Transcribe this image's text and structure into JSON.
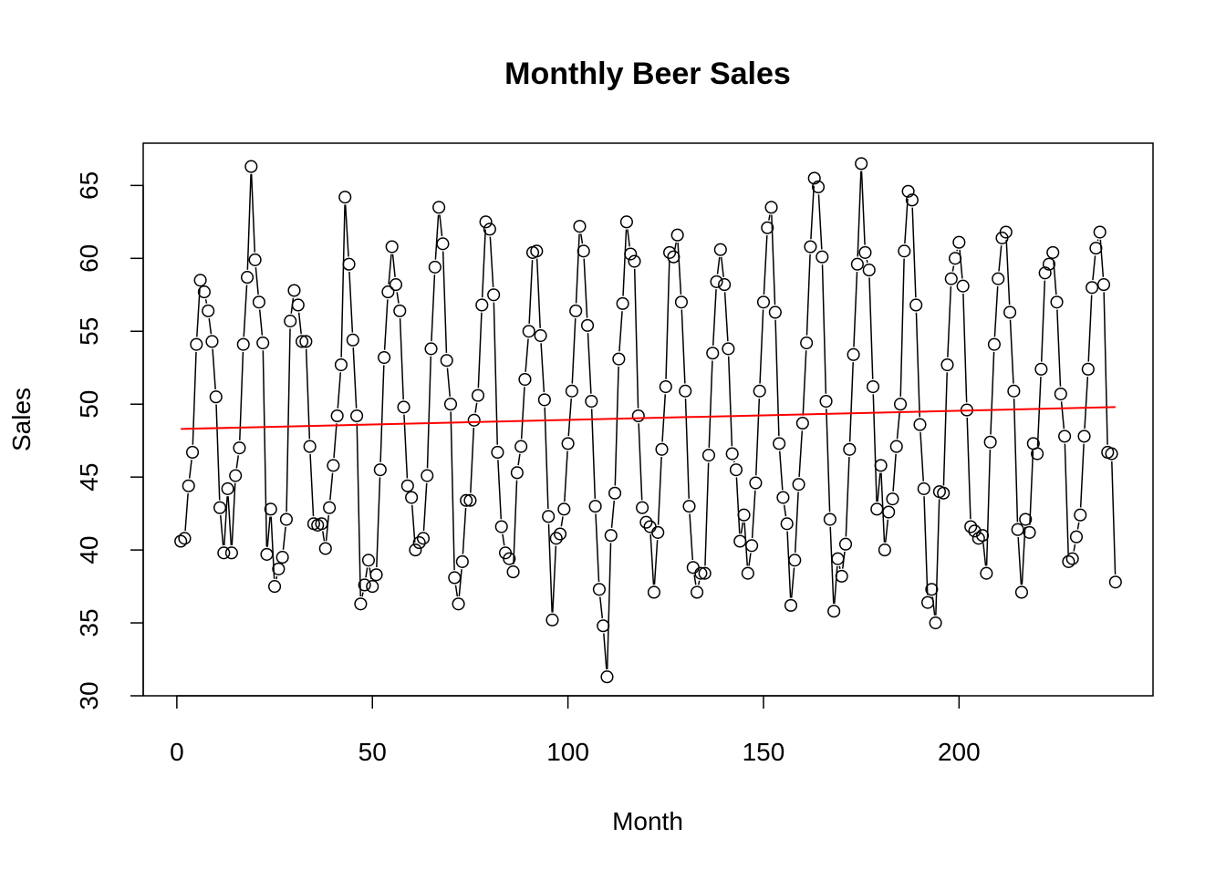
{
  "chart_data": {
    "type": "line",
    "title": "Monthly Beer Sales",
    "xlabel": "Month",
    "ylabel": "Sales",
    "xlim": [
      -8.6,
      249.6
    ],
    "ylim": [
      30.0,
      67.9
    ],
    "xticks": [
      0,
      50,
      100,
      150,
      200
    ],
    "yticks": [
      30,
      35,
      40,
      45,
      50,
      55,
      60,
      65
    ],
    "grid": false,
    "legend": "none",
    "colors": {
      "series": "#000000",
      "trend": "#ff0000",
      "frame": "#000000"
    },
    "series": [
      {
        "style": "points-and-lines",
        "marker": "open-circle",
        "x": [
          1,
          2,
          3,
          4,
          5,
          6,
          7,
          8,
          9,
          10,
          11,
          12,
          13,
          14,
          15,
          16,
          17,
          18,
          19,
          20,
          21,
          22,
          23,
          24,
          25,
          26,
          27,
          28,
          29,
          30,
          31,
          32,
          33,
          34,
          35,
          36,
          37,
          38,
          39,
          40,
          41,
          42,
          43,
          44,
          45,
          46,
          47,
          48,
          49,
          50,
          51,
          52,
          53,
          54,
          55,
          56,
          57,
          58,
          59,
          60,
          61,
          62,
          63,
          64,
          65,
          66,
          67,
          68,
          69,
          70,
          71,
          72,
          73,
          74,
          75,
          76,
          77,
          78,
          79,
          80,
          81,
          82,
          83,
          84,
          85,
          86,
          87,
          88,
          89,
          90,
          91,
          92,
          93,
          94,
          95,
          96,
          97,
          98,
          99,
          100,
          101,
          102,
          103,
          104,
          105,
          106,
          107,
          108,
          109,
          110,
          111,
          112,
          113,
          114,
          115,
          116,
          117,
          118,
          119,
          120,
          121,
          122,
          123,
          124,
          125,
          126,
          127,
          128,
          129,
          130,
          131,
          132,
          133,
          134,
          135,
          136,
          137,
          138,
          139,
          140,
          141,
          142,
          143,
          144,
          145,
          146,
          147,
          148,
          149,
          150,
          151,
          152,
          153,
          154,
          155,
          156,
          157,
          158,
          159,
          160,
          161,
          162,
          163,
          164,
          165,
          166,
          167,
          168,
          169,
          170,
          171,
          172,
          173,
          174,
          175,
          176,
          177,
          178,
          179,
          180,
          181,
          182,
          183,
          184,
          185,
          186,
          187,
          188,
          189,
          190,
          191,
          192,
          193,
          194,
          195,
          196,
          197,
          198,
          199,
          200,
          201,
          202,
          203,
          204,
          205,
          206,
          207,
          208,
          209,
          210,
          211,
          212,
          213,
          214,
          215,
          216,
          217,
          218,
          219,
          220,
          221,
          222,
          223,
          224,
          225,
          226,
          227,
          228,
          229,
          230,
          231,
          232,
          233,
          234,
          235,
          236,
          237,
          238,
          239,
          240
        ],
        "values": [
          40.6,
          40.8,
          44.4,
          46.7,
          54.1,
          58.5,
          57.7,
          56.4,
          54.3,
          50.5,
          42.9,
          39.8,
          44.2,
          39.8,
          45.1,
          47.0,
          54.1,
          58.7,
          66.3,
          59.9,
          57.0,
          54.2,
          39.7,
          42.8,
          37.5,
          38.7,
          39.5,
          42.1,
          55.7,
          57.8,
          56.8,
          54.3,
          54.3,
          47.1,
          41.8,
          41.7,
          41.8,
          40.1,
          42.9,
          45.8,
          49.2,
          52.7,
          64.2,
          59.6,
          54.4,
          49.2,
          36.3,
          37.6,
          39.3,
          37.5,
          38.3,
          45.5,
          53.2,
          57.7,
          60.8,
          58.2,
          56.4,
          49.8,
          44.4,
          43.6,
          40.0,
          40.5,
          40.8,
          45.1,
          53.8,
          59.4,
          63.5,
          61.0,
          53.0,
          50.0,
          38.1,
          36.3,
          39.2,
          43.4,
          43.4,
          48.9,
          50.6,
          56.8,
          62.5,
          62.0,
          57.5,
          46.7,
          41.6,
          39.8,
          39.4,
          38.5,
          45.3,
          47.1,
          51.7,
          55.0,
          60.4,
          60.5,
          54.7,
          50.3,
          42.3,
          35.2,
          40.8,
          41.1,
          42.8,
          47.3,
          50.9,
          56.4,
          62.2,
          60.5,
          55.4,
          50.2,
          43.0,
          37.3,
          34.8,
          31.3,
          41.0,
          43.9,
          53.1,
          56.9,
          62.5,
          60.3,
          59.8,
          49.2,
          42.9,
          41.9,
          41.6,
          37.1,
          41.2,
          46.9,
          51.2,
          60.4,
          60.1,
          61.6,
          57.0,
          50.9,
          43.0,
          38.8,
          37.1,
          38.4,
          38.4,
          46.5,
          53.5,
          58.4,
          60.6,
          58.2,
          53.8,
          46.6,
          45.5,
          40.6,
          42.4,
          38.4,
          40.3,
          44.6,
          50.9,
          57.0,
          62.1,
          63.5,
          56.3,
          47.3,
          43.6,
          41.8,
          36.2,
          39.3,
          44.5,
          48.7,
          54.2,
          60.8,
          65.5,
          64.9,
          60.1,
          50.2,
          42.1,
          35.8,
          39.4,
          38.2,
          40.4,
          46.9,
          53.4,
          59.6,
          66.5,
          60.4,
          59.2,
          51.2,
          42.8,
          45.8,
          40.0,
          42.6,
          43.5,
          47.1,
          50.0,
          60.5,
          64.6,
          64.0,
          56.8,
          48.6,
          44.2,
          36.4,
          37.3,
          35.0,
          44.0,
          43.9,
          52.7,
          58.6,
          60.0,
          61.1,
          58.1,
          49.6,
          41.6,
          41.3,
          40.8,
          41.0,
          38.4,
          47.4,
          54.1,
          58.6,
          61.4,
          61.8,
          56.3,
          50.9,
          41.4,
          37.1,
          42.1,
          41.2,
          47.3,
          46.6,
          52.4,
          59.0,
          59.6,
          60.4,
          57.0,
          50.7,
          47.8,
          39.2,
          39.4,
          40.9,
          42.4,
          47.8,
          52.4,
          58.0,
          60.7,
          61.8,
          58.2,
          46.7,
          46.6,
          37.8
        ]
      },
      {
        "style": "trend-line",
        "x": [
          1,
          240
        ],
        "values": [
          48.3,
          49.8
        ]
      }
    ]
  }
}
